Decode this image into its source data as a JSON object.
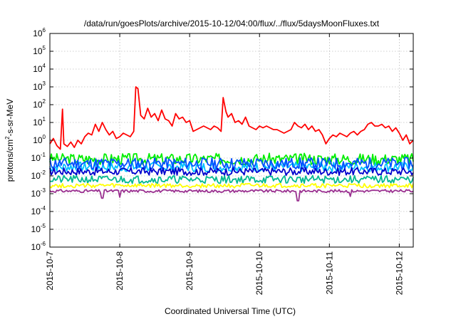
{
  "chart_data": {
    "type": "line",
    "title": "/data/run/goesPlots/archive/2015-10-12/04:00/flux/../flux/5daysMoonFluxes.txt",
    "xlabel": "Coordinated Universal Time (UTC)",
    "ylabel_parts": [
      "protons/cm",
      "2",
      "-s-sr-MeV"
    ],
    "y_scale": "log",
    "ylim_exp": [
      -6,
      6
    ],
    "y_tick_exponents": [
      -6,
      -5,
      -4,
      -3,
      -2,
      -1,
      0,
      1,
      2,
      3,
      4,
      5,
      6
    ],
    "y_tick_base": "10",
    "xlim_days": [
      0,
      5.2
    ],
    "x_tick_labels": [
      "2015-10-7",
      "2015-10-8",
      "2015-10-9",
      "2015-10-10",
      "2015-10-11",
      "2015-10-12"
    ],
    "grid": true,
    "series": [
      {
        "color": "#ff0000",
        "points": [
          [
            0,
            -0.2
          ],
          [
            0.05,
            0.1
          ],
          [
            0.1,
            -0.3
          ],
          [
            0.15,
            -0.5
          ],
          [
            0.18,
            1.75
          ],
          [
            0.2,
            -0.2
          ],
          [
            0.25,
            -0.35
          ],
          [
            0.3,
            -0.1
          ],
          [
            0.35,
            -0.4
          ],
          [
            0.4,
            0.0
          ],
          [
            0.45,
            -0.2
          ],
          [
            0.5,
            0.2
          ],
          [
            0.55,
            0.4
          ],
          [
            0.6,
            0.3
          ],
          [
            0.65,
            0.9
          ],
          [
            0.7,
            0.5
          ],
          [
            0.75,
            1.0
          ],
          [
            0.8,
            0.6
          ],
          [
            0.85,
            0.3
          ],
          [
            0.9,
            0.5
          ],
          [
            0.95,
            0.1
          ],
          [
            1.0,
            0.2
          ],
          [
            1.05,
            0.4
          ],
          [
            1.1,
            0.3
          ],
          [
            1.15,
            0.2
          ],
          [
            1.2,
            0.5
          ],
          [
            1.23,
            3.0
          ],
          [
            1.26,
            2.9
          ],
          [
            1.3,
            1.4
          ],
          [
            1.35,
            1.2
          ],
          [
            1.4,
            1.8
          ],
          [
            1.45,
            1.3
          ],
          [
            1.5,
            1.5
          ],
          [
            1.55,
            1.1
          ],
          [
            1.6,
            1.7
          ],
          [
            1.65,
            1.2
          ],
          [
            1.7,
            1.1
          ],
          [
            1.75,
            0.8
          ],
          [
            1.8,
            1.5
          ],
          [
            1.85,
            1.2
          ],
          [
            1.9,
            1.3
          ],
          [
            1.95,
            1.0
          ],
          [
            2.0,
            1.1
          ],
          [
            2.05,
            0.5
          ],
          [
            2.1,
            0.6
          ],
          [
            2.15,
            0.7
          ],
          [
            2.2,
            0.8
          ],
          [
            2.25,
            0.7
          ],
          [
            2.3,
            0.6
          ],
          [
            2.35,
            0.8
          ],
          [
            2.4,
            0.7
          ],
          [
            2.45,
            0.5
          ],
          [
            2.48,
            2.4
          ],
          [
            2.52,
            1.6
          ],
          [
            2.55,
            1.3
          ],
          [
            2.6,
            1.5
          ],
          [
            2.65,
            1.0
          ],
          [
            2.7,
            1.1
          ],
          [
            2.75,
            0.9
          ],
          [
            2.8,
            1.3
          ],
          [
            2.85,
            0.8
          ],
          [
            2.9,
            0.7
          ],
          [
            2.95,
            0.6
          ],
          [
            3.0,
            0.8
          ],
          [
            3.05,
            0.7
          ],
          [
            3.1,
            0.8
          ],
          [
            3.15,
            0.7
          ],
          [
            3.2,
            0.6
          ],
          [
            3.25,
            0.6
          ],
          [
            3.3,
            0.5
          ],
          [
            3.35,
            0.4
          ],
          [
            3.4,
            0.5
          ],
          [
            3.45,
            0.6
          ],
          [
            3.5,
            1.0
          ],
          [
            3.55,
            0.8
          ],
          [
            3.6,
            0.7
          ],
          [
            3.65,
            0.9
          ],
          [
            3.7,
            0.6
          ],
          [
            3.75,
            0.8
          ],
          [
            3.8,
            0.5
          ],
          [
            3.85,
            0.6
          ],
          [
            3.9,
            0.3
          ],
          [
            3.95,
            -0.2
          ],
          [
            4.0,
            0.1
          ],
          [
            4.05,
            0.3
          ],
          [
            4.1,
            0.2
          ],
          [
            4.15,
            0.4
          ],
          [
            4.2,
            0.3
          ],
          [
            4.25,
            0.2
          ],
          [
            4.3,
            0.4
          ],
          [
            4.35,
            0.5
          ],
          [
            4.4,
            0.3
          ],
          [
            4.45,
            0.5
          ],
          [
            4.5,
            0.6
          ],
          [
            4.55,
            0.9
          ],
          [
            4.6,
            1.0
          ],
          [
            4.65,
            0.8
          ],
          [
            4.7,
            0.8
          ],
          [
            4.75,
            0.9
          ],
          [
            4.8,
            0.7
          ],
          [
            4.85,
            0.8
          ],
          [
            4.9,
            0.5
          ],
          [
            4.95,
            0.7
          ],
          [
            5.0,
            0.4
          ],
          [
            5.05,
            0.0
          ],
          [
            5.1,
            0.3
          ],
          [
            5.15,
            -0.2
          ],
          [
            5.2,
            0.0
          ]
        ]
      },
      {
        "color": "#00ee00",
        "base": -1.05,
        "amp": 0.32,
        "seed": 3
      },
      {
        "color": "#00c0ff",
        "base": -1.5,
        "amp": 0.28,
        "seed": 7
      },
      {
        "color": "#0050ff",
        "base": -1.3,
        "amp": 0.33,
        "seed": 11
      },
      {
        "color": "#0000cc",
        "base": -1.75,
        "amp": 0.22,
        "seed": 17
      },
      {
        "color": "#00b890",
        "base": -2.2,
        "amp": 0.22,
        "seed": 21
      },
      {
        "color": "#ffff00",
        "base": -2.55,
        "amp": 0.12,
        "seed": 27
      },
      {
        "color": "#9a3090",
        "base": -2.85,
        "amp": 0.08,
        "seed": 31,
        "dips": [
          [
            0.75,
            -3.25
          ],
          [
            1.0,
            -3.2
          ],
          [
            3.55,
            -3.4
          ],
          [
            4.3,
            -3.15
          ]
        ]
      }
    ]
  }
}
